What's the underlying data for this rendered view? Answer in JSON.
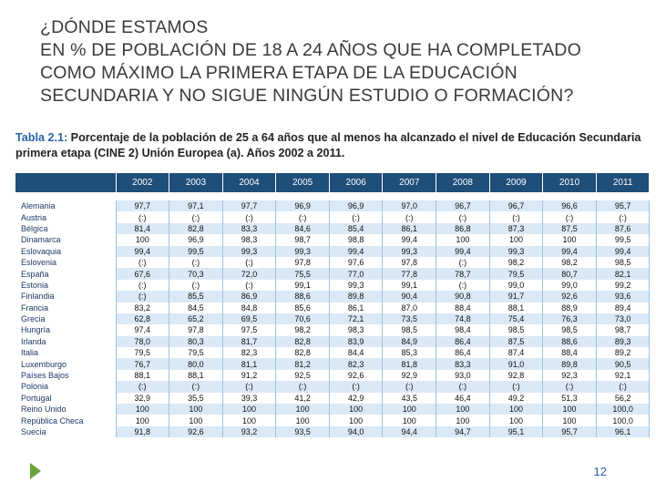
{
  "title": {
    "lines": [
      "¿DÓNDE ESTAMOS",
      "EN % DE POBLACIÓN DE 18 A 24 AÑOS QUE HA COMPLETADO",
      "COMO MÁXIMO LA PRIMERA ETAPA DE LA EDUCACIÓN",
      "SECUNDARIA Y NO SIGUE NINGÚN ESTUDIO O FORMACIÓN?"
    ]
  },
  "caption": {
    "label": "Tabla 2.1:",
    "text": " Porcentaje de la población de 25 a 64 años que al menos ha alcanzado el nivel de Educación Secundaria primera etapa (CINE 2) Unión Europea (a). Años 2002 a 2011."
  },
  "table": {
    "years": [
      "2002",
      "2003",
      "2004",
      "2005",
      "2006",
      "2007",
      "2008",
      "2009",
      "2010",
      "2011"
    ],
    "rows": [
      {
        "country": "Alemania",
        "values": [
          "97,7",
          "97,1",
          "97,7",
          "96,9",
          "96,9",
          "97,0",
          "96,7",
          "96,7",
          "96,6",
          "95,7"
        ]
      },
      {
        "country": "Austria",
        "values": [
          "(:)",
          "(:)",
          "(:)",
          "(:)",
          "(:)",
          "(:)",
          "(:)",
          "(:)",
          "(:)",
          "(:)"
        ]
      },
      {
        "country": "Bélgica",
        "values": [
          "81,4",
          "82,8",
          "83,3",
          "84,6",
          "85,4",
          "86,1",
          "86,8",
          "87,3",
          "87,5",
          "87,6"
        ]
      },
      {
        "country": "Dinamarca",
        "values": [
          "100",
          "96,9",
          "98,3",
          "98,7",
          "98,8",
          "99,4",
          "100",
          "100",
          "100",
          "99,5"
        ]
      },
      {
        "country": "Eslovaquia",
        "values": [
          "99,4",
          "99,5",
          "99,3",
          "99,3",
          "99,4",
          "99,3",
          "99,4",
          "99,3",
          "99,4",
          "99,4"
        ]
      },
      {
        "country": "Eslovenia",
        "values": [
          "(:)",
          "(:)",
          "(:)",
          "97,8",
          "97,6",
          "97,8",
          "(:)",
          "98,2",
          "98,2",
          "98,5"
        ]
      },
      {
        "country": "España",
        "values": [
          "67,6",
          "70,3",
          "72,0",
          "75,5",
          "77,0",
          "77,8",
          "78,7",
          "79,5",
          "80,7",
          "82,1"
        ]
      },
      {
        "country": "Estonia",
        "values": [
          "(:)",
          "(:)",
          "(:)",
          "99,1",
          "99,3",
          "99,1",
          "(:)",
          "99,0",
          "99,0",
          "99,2"
        ]
      },
      {
        "country": "Finlandia",
        "values": [
          "(:)",
          "85,5",
          "86,9",
          "88,6",
          "89,8",
          "90,4",
          "90,8",
          "91,7",
          "92,6",
          "93,6"
        ]
      },
      {
        "country": "Francia",
        "values": [
          "83,2",
          "84,5",
          "84,8",
          "85,6",
          "86,1",
          "87,0",
          "88,4",
          "88,1",
          "88,9",
          "89,4"
        ]
      },
      {
        "country": "Grecia",
        "values": [
          "62,8",
          "65,2",
          "69,5",
          "70,6",
          "72,1",
          "73,5",
          "74,8",
          "75,4",
          "76,3",
          "73,0"
        ]
      },
      {
        "country": "Hungría",
        "values": [
          "97,4",
          "97,8",
          "97,5",
          "98,2",
          "98,3",
          "98,5",
          "98,4",
          "98,5",
          "98,5",
          "98,7"
        ]
      },
      {
        "country": "Irlanda",
        "values": [
          "78,0",
          "80,3",
          "81,7",
          "82,8",
          "83,9",
          "84,9",
          "86,4",
          "87,5",
          "88,6",
          "89,3"
        ]
      },
      {
        "country": "Italia",
        "values": [
          "79,5",
          "79,5",
          "82,3",
          "82,8",
          "84,4",
          "85,3",
          "86,4",
          "87,4",
          "88,4",
          "89,2"
        ]
      },
      {
        "country": "Luxemburgo",
        "values": [
          "76,7",
          "80,0",
          "81,1",
          "81,2",
          "82,3",
          "81,8",
          "83,3",
          "91,0",
          "89,8",
          "90,5"
        ]
      },
      {
        "country": "Países Bajos",
        "values": [
          "88,1",
          "88,1",
          "91,2",
          "92,5",
          "92,6",
          "92,9",
          "93,0",
          "92,8",
          "92,3",
          "92,1"
        ]
      },
      {
        "country": "Polonia",
        "values": [
          "(:)",
          "(:)",
          "(:)",
          "(:)",
          "(:)",
          "(:)",
          "(:)",
          "(:)",
          "(:)",
          "(:)"
        ]
      },
      {
        "country": "Portugal",
        "values": [
          "32,9",
          "35,5",
          "39,3",
          "41,2",
          "42,9",
          "43,5",
          "46,4",
          "49,2",
          "51,3",
          "56,2"
        ]
      },
      {
        "country": "Reino Unido",
        "values": [
          "100",
          "100",
          "100",
          "100",
          "100",
          "100",
          "100",
          "100",
          "100",
          "100,0"
        ]
      },
      {
        "country": "República Checa",
        "values": [
          "100",
          "100",
          "100",
          "100",
          "100",
          "100",
          "100",
          "100",
          "100",
          "100,0"
        ]
      },
      {
        "country": "Suecia",
        "values": [
          "91,8",
          "92,6",
          "93,2",
          "93,5",
          "94,0",
          "94,4",
          "94,7",
          "95,1",
          "95,7",
          "96,1"
        ]
      }
    ]
  },
  "footer": {
    "page_number": "12"
  },
  "colors": {
    "header_bg": "#1f4e79",
    "band_bg": "#dbe9f6",
    "caption_label": "#2a62a6",
    "arrow": "#6aa33a"
  }
}
